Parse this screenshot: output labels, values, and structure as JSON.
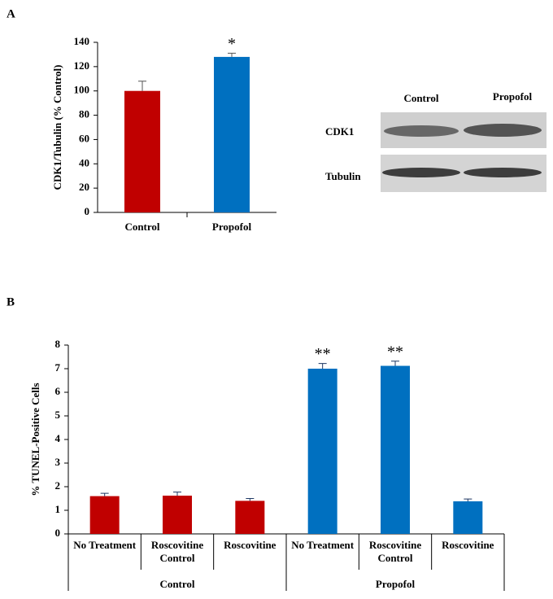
{
  "chart_data": [
    {
      "type": "bar",
      "panel": "A",
      "y_label": "CDK1/Tubulin (% Control)",
      "categories": [
        "Control",
        "Propofol"
      ],
      "values": [
        100,
        128
      ],
      "errors": [
        8,
        3
      ],
      "colors": [
        "#c00000",
        "#0070c0"
      ],
      "ylim": [
        0,
        140
      ],
      "yticks": [
        0,
        20,
        40,
        60,
        80,
        100,
        120,
        140
      ],
      "annotations": [
        {
          "x": "Propofol",
          "text": "*"
        }
      ]
    },
    {
      "type": "bar",
      "panel": "B",
      "y_label": "% TUNEL-Positive Cells",
      "categories": [
        "No Treatment",
        "Roscovitine Control",
        "Roscovitine",
        "No Treatment",
        "Roscovitine Control",
        "Roscovitine"
      ],
      "values": [
        1.6,
        1.62,
        1.4,
        7.0,
        7.12,
        1.38
      ],
      "errors": [
        0.12,
        0.15,
        0.1,
        0.22,
        0.2,
        0.1
      ],
      "colors": [
        "#c00000",
        "#c00000",
        "#c00000",
        "#0070c0",
        "#0070c0",
        "#0070c0"
      ],
      "ylim": [
        0,
        8
      ],
      "yticks": [
        0,
        1,
        2,
        3,
        4,
        5,
        6,
        7,
        8
      ],
      "groups": [
        {
          "name": "Control",
          "size": 3
        },
        {
          "name": "Propofol",
          "size": 3
        }
      ],
      "annotations": [
        {
          "x": "No Treatment",
          "index": 3,
          "text": "**"
        },
        {
          "x": "Roscovitine Control",
          "index": 4,
          "text": "**"
        }
      ]
    }
  ],
  "blot": {
    "columns": [
      "Control",
      "Propofol"
    ],
    "rows": [
      "CDK1",
      "Tubulin"
    ]
  }
}
